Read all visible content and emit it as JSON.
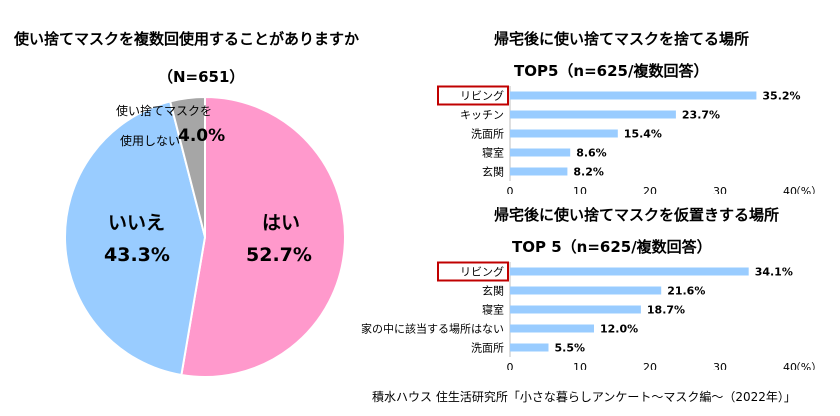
{
  "pie": {
    "title": "使い捨てマスクを複数回使用することがありますか",
    "subtitle": "（N=651）",
    "labels": {
      "no_use": "使い捨てマスクを",
      "no_use_line2": "使用しない",
      "no_use_pct": "4.0%",
      "iie": "いいえ",
      "iie_pct": "43.3%",
      "hai": "はい",
      "hai_pct": "52.7%"
    }
  },
  "bar1": {
    "title": "帰宅後に使い捨てマスクを捨てる場所",
    "subtitle": "TOP5（n=625/複数回答）",
    "axis_unit": "（%）"
  },
  "bar2": {
    "title": "帰宅後に使い捨てマスクを仮置きする場所",
    "subtitle": "TOP 5（n=625/複数回答）",
    "axis_unit": "（%）"
  },
  "credit": "積水ハウス 住生活研究所「小さな暮らしアンケート～マスク編～（2022年）」",
  "colors": {
    "pink": "#FF99CC",
    "blue": "#99CCFF",
    "gray": "#A6A6A6",
    "highlight": "#C00000"
  },
  "chart_data": [
    {
      "type": "pie",
      "title": "使い捨てマスクを複数回使用することがありますか",
      "subtitle": "（N=651）",
      "categories": [
        "はい",
        "いいえ",
        "使い捨てマスクを使用しない"
      ],
      "values": [
        52.7,
        43.3,
        4.0
      ]
    },
    {
      "type": "bar",
      "title": "帰宅後に使い捨てマスクを捨てる場所",
      "subtitle": "TOP5（n=625/複数回答）",
      "categories": [
        "リビング",
        "キッチン",
        "洗面所",
        "寝室",
        "玄関"
      ],
      "values": [
        35.2,
        23.7,
        15.4,
        8.6,
        8.2
      ],
      "value_labels": [
        "35.2%",
        "23.7%",
        "15.4%",
        "8.6%",
        "8.2%"
      ],
      "xlim": [
        0,
        40
      ],
      "xticks": [
        "0",
        "10",
        "20",
        "30",
        "40"
      ],
      "xunit": "（%）",
      "highlight": "リビング"
    },
    {
      "type": "bar",
      "title": "帰宅後に使い捨てマスクを仮置きする場所",
      "subtitle": "TOP 5（n=625/複数回答）",
      "categories": [
        "リビング",
        "玄関",
        "寝室",
        "家の中に該当する場所はない",
        "洗面所"
      ],
      "values": [
        34.1,
        21.6,
        18.7,
        12.0,
        5.5
      ],
      "value_labels": [
        "34.1%",
        "21.6%",
        "18.7%",
        "12.0%",
        "5.5%"
      ],
      "xlim": [
        0,
        40
      ],
      "xticks": [
        "0",
        "10",
        "20",
        "30",
        "40"
      ],
      "xunit": "（%）",
      "highlight": "リビング"
    }
  ]
}
